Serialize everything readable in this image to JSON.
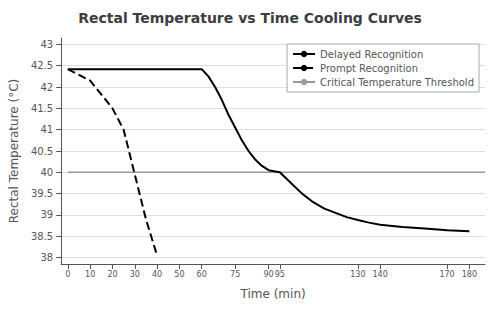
{
  "chart_data": {
    "type": "line",
    "title": "Rectal Temperature vs Time Cooling Curves",
    "xlabel": "Time (min)",
    "ylabel": "Rectal Temperature (°C)",
    "xlim": [
      -3,
      187
    ],
    "ylim": [
      37.85,
      43.15
    ],
    "xticks": [
      0,
      10,
      20,
      30,
      40,
      50,
      60,
      75,
      90,
      95,
      130,
      140,
      170,
      180
    ],
    "yticks": [
      38,
      38.5,
      39,
      39.5,
      40,
      40.5,
      41,
      41.5,
      42,
      42.5,
      43
    ],
    "grid": true,
    "legend": "upper right",
    "series": [
      {
        "name": "Delayed Recognition",
        "color": "#000000",
        "line_style": "solid",
        "x": [
          0,
          5,
          10,
          20,
          30,
          40,
          50,
          60,
          63,
          66,
          69,
          72,
          75,
          78,
          81,
          84,
          87,
          90,
          93,
          95,
          100,
          105,
          110,
          115,
          120,
          125,
          130,
          135,
          140,
          150,
          160,
          170,
          180
        ],
        "values": [
          42.42,
          42.42,
          42.42,
          42.42,
          42.42,
          42.42,
          42.42,
          42.42,
          42.25,
          42.0,
          41.7,
          41.35,
          41.05,
          40.75,
          40.5,
          40.3,
          40.15,
          40.05,
          40.02,
          40.0,
          39.75,
          39.5,
          39.3,
          39.15,
          39.05,
          38.95,
          38.88,
          38.82,
          38.77,
          38.72,
          38.68,
          38.64,
          38.62
        ]
      },
      {
        "name": "Prompt Recognition",
        "color": "#000000",
        "line_style": "dashed",
        "x": [
          0,
          10,
          20,
          25,
          30,
          35,
          40
        ],
        "values": [
          42.42,
          42.15,
          41.5,
          41.0,
          39.95,
          38.9,
          38.05
        ]
      },
      {
        "name": "Critical Temperature Threshold",
        "color": "#999999",
        "line_style": "solid",
        "x": [
          0,
          187
        ],
        "values": [
          40.0,
          40.0
        ]
      }
    ]
  }
}
